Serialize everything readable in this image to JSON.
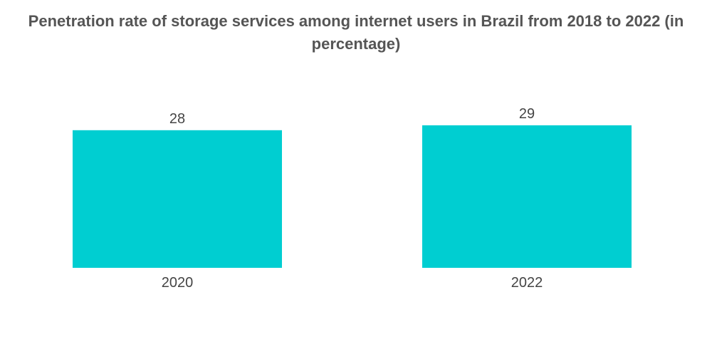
{
  "chart_data": {
    "type": "bar",
    "title": "Penetration rate of storage services among internet users in Brazil from 2018 to 2022 (in percentage)",
    "categories": [
      "2020",
      "2022"
    ],
    "values": [
      28,
      29
    ],
    "xlabel": "",
    "ylabel": "",
    "grid": false,
    "legend": "none",
    "bar_color": "#00CED1",
    "data_labels": [
      "28",
      "29"
    ]
  }
}
